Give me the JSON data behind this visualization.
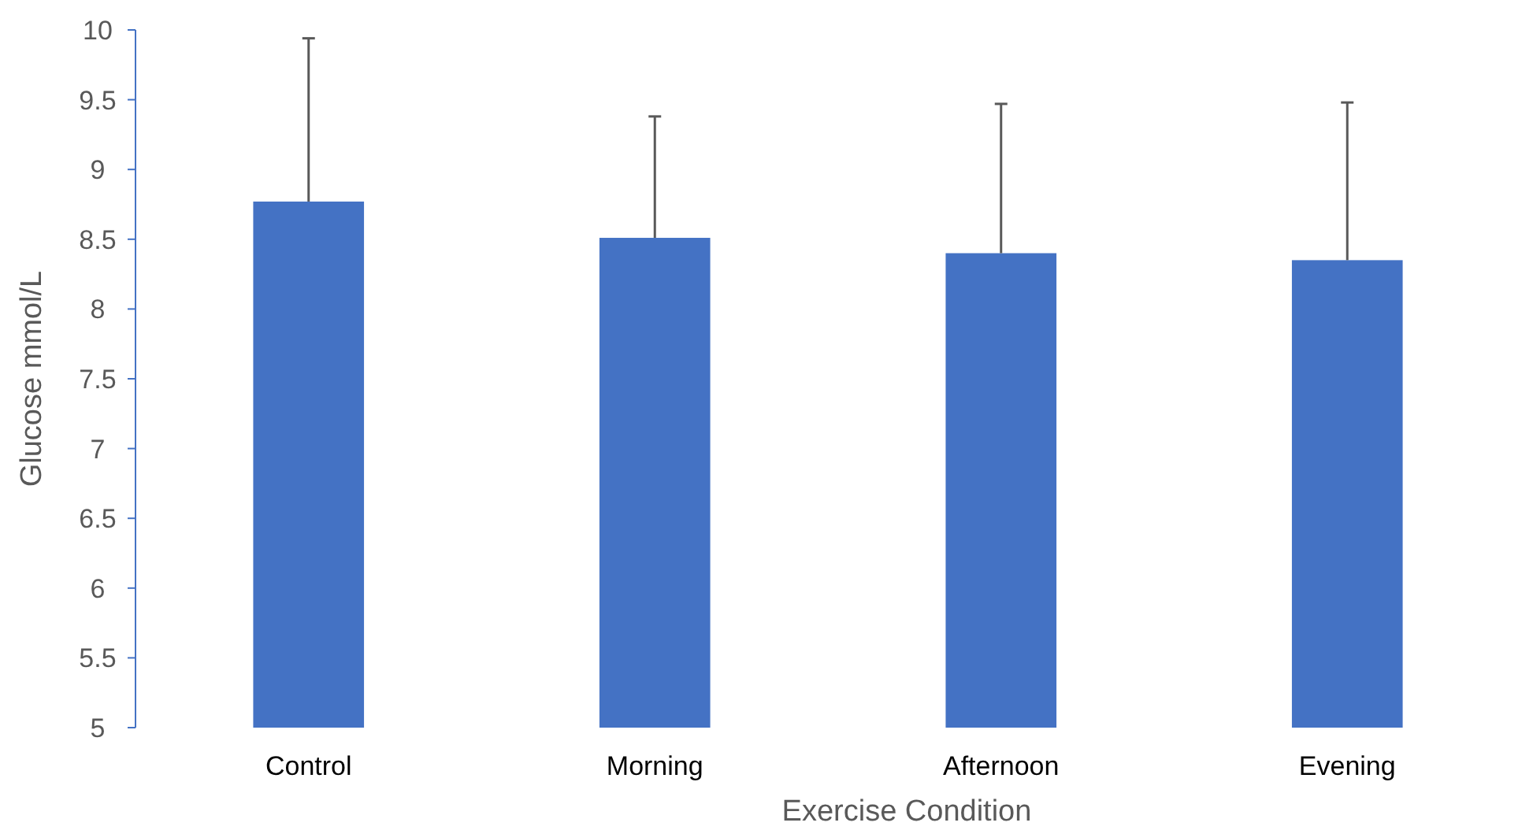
{
  "chart_data": {
    "type": "bar",
    "xlabel": "Exercise Condition",
    "ylabel": "Glucose mmol/L",
    "categories": [
      "Control",
      "Morning",
      "Afternoon",
      "Evening"
    ],
    "values": [
      8.77,
      8.51,
      8.4,
      8.35
    ],
    "errors": [
      [
        8.77,
        9.94
      ],
      [
        8.51,
        9.38
      ],
      [
        8.4,
        9.47
      ],
      [
        8.35,
        9.48
      ]
    ],
    "color": "#4472c4",
    "ylim": [
      5,
      10
    ],
    "yticks": [
      5,
      5.5,
      6,
      6.5,
      7,
      7.5,
      8,
      8.5,
      9,
      9.5,
      10
    ],
    "grid": false
  }
}
